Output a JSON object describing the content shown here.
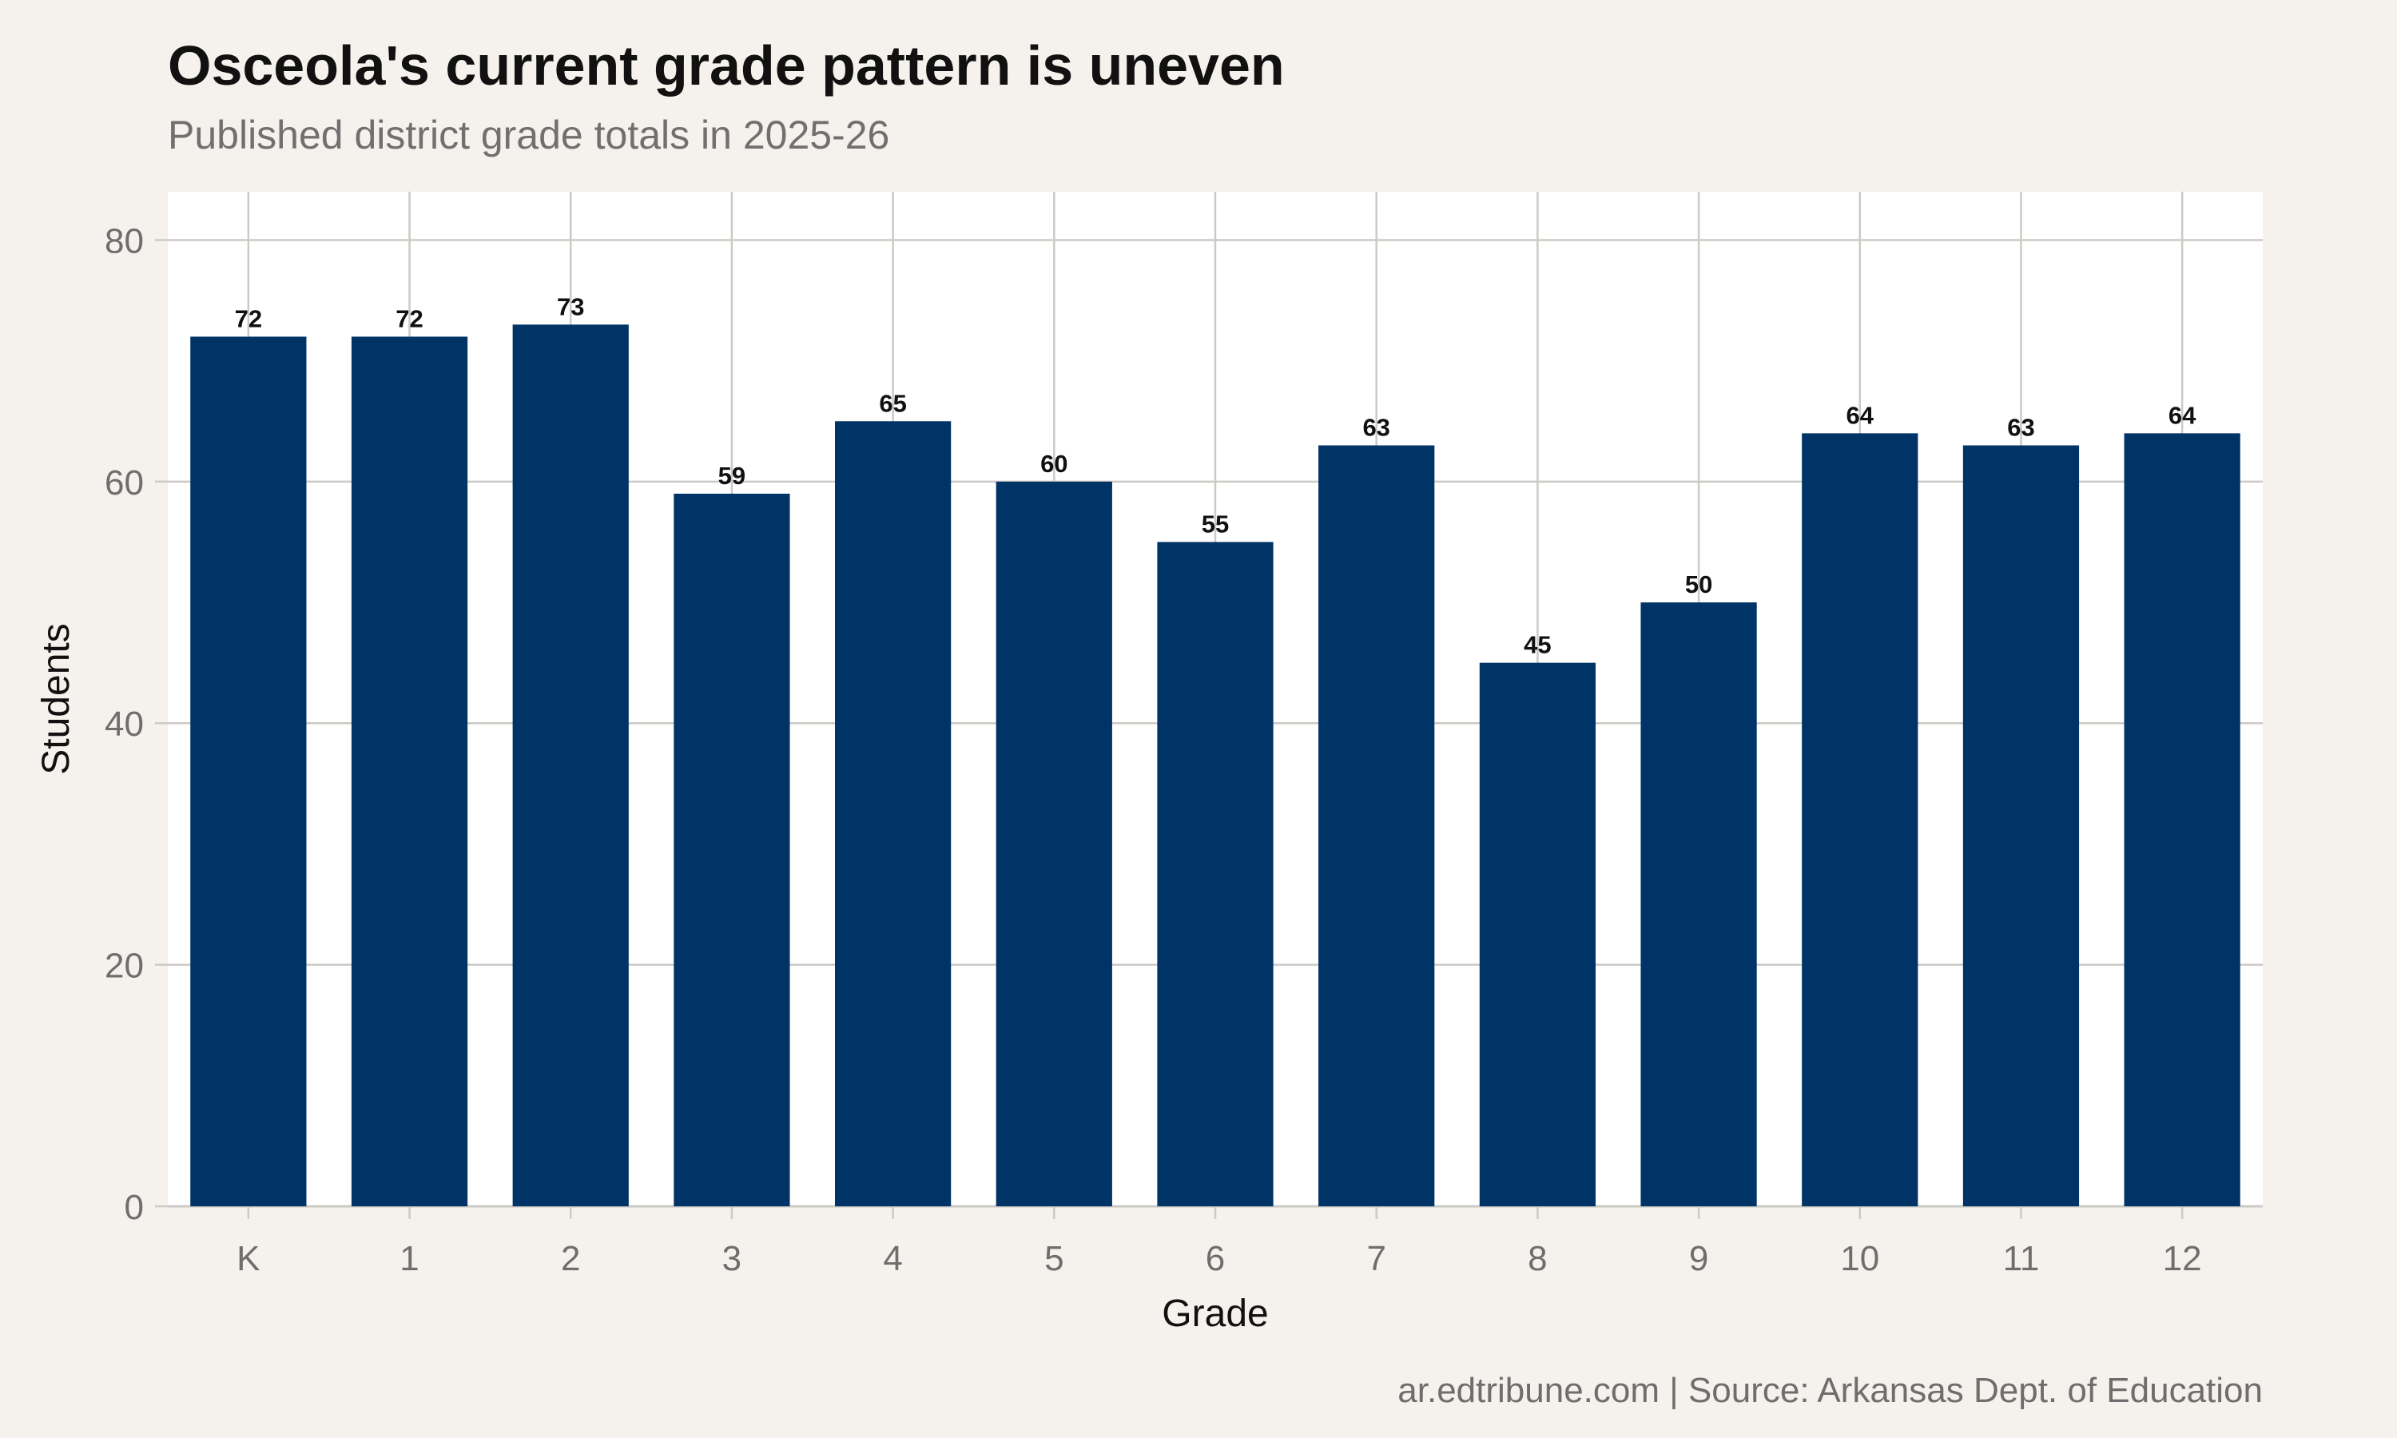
{
  "title": "Osceola's current grade pattern is uneven",
  "subtitle": "Published district grade totals in 2025-26",
  "caption": "ar.edtribune.com | Source: Arkansas Dept. of Education",
  "colors": {
    "background": "#f5f2ed",
    "panel": "#ffffff",
    "bar": "#003366",
    "grid": "#cccac4"
  },
  "chart_data": {
    "type": "bar",
    "categories": [
      "K",
      "1",
      "2",
      "3",
      "4",
      "5",
      "6",
      "7",
      "8",
      "9",
      "10",
      "11",
      "12"
    ],
    "values": [
      72,
      72,
      73,
      59,
      65,
      60,
      55,
      63,
      45,
      50,
      64,
      63,
      64
    ],
    "xlabel": "Grade",
    "ylabel": "Students",
    "ylim": [
      0,
      84
    ],
    "yticks": [
      0,
      20,
      40,
      60,
      80
    ],
    "grid": true,
    "legend": "none",
    "data_labels": true
  }
}
